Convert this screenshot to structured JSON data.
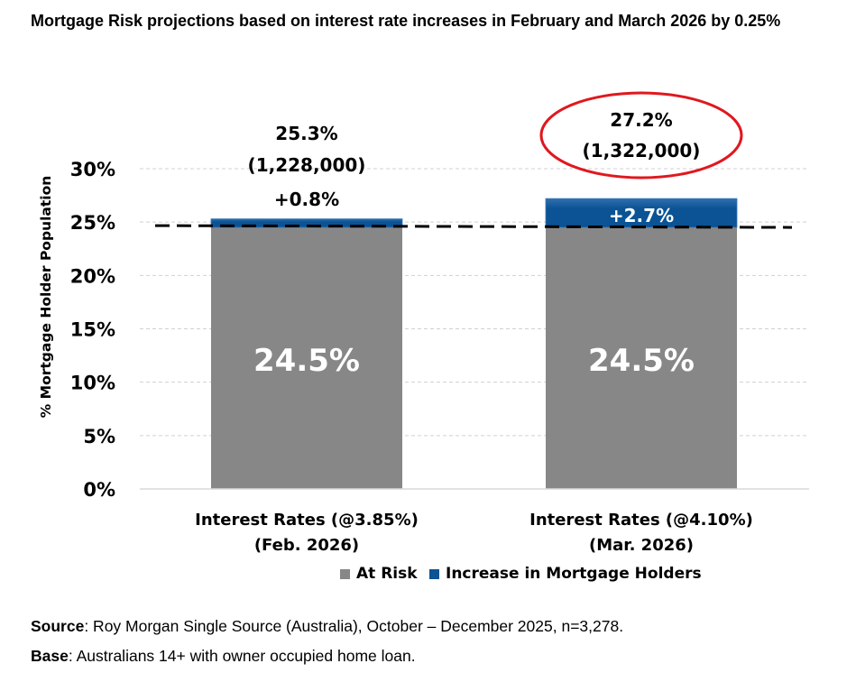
{
  "title": "Mortgage Risk projections based on interest rate increases in February and March 2026 by 0.25%",
  "footer": {
    "source_label": "Source",
    "source_text": ": Roy Morgan Single Source (Australia), October – December 2025, n=3,278.",
    "base_label": "Base",
    "base_text": ": Australians 14+ with owner occupied home loan."
  },
  "colors": {
    "at_risk": "#878787",
    "increase": "#0B5394",
    "increase_highlight": "#2F6FB0",
    "dashed_line": "#000000",
    "highlight_ellipse": "#E0181E",
    "gridline": "#d0d0d0"
  },
  "chart_data": {
    "type": "bar",
    "stacked": true,
    "title": "Mortgage Risk projections based on interest rate increases in February and March 2026 by 0.25%",
    "xlabel": "",
    "ylabel": "% Mortgage Holder Population",
    "ylim": [
      0,
      30
    ],
    "yticks": [
      0,
      5,
      10,
      15,
      20,
      25,
      30
    ],
    "ytick_labels": [
      "0%",
      "5%",
      "10%",
      "15%",
      "20%",
      "25%",
      "30%"
    ],
    "grid": true,
    "legend_position": "bottom",
    "categories": [
      {
        "line1": "Interest Rates (@3.85%)",
        "line2": "(Feb. 2026)"
      },
      {
        "line1": "Interest Rates (@4.10%)",
        "line2": "(Mar. 2026)"
      }
    ],
    "series": [
      {
        "name": "At Risk",
        "values": [
          24.5,
          24.5
        ],
        "labels": [
          "24.5%",
          "24.5%"
        ]
      },
      {
        "name": "Increase in Mortgage Holders",
        "values": [
          0.8,
          2.7
        ],
        "labels": [
          "+0.8%",
          "+2.7%"
        ]
      }
    ],
    "totals": [
      {
        "value": 25.3,
        "label": "25.3%",
        "count": "(1,228,000)"
      },
      {
        "value": 27.2,
        "label": "27.2%",
        "count": "(1,322,000)",
        "highlighted": true
      }
    ],
    "reference_line": {
      "value": 24.5,
      "style": "dashed"
    }
  }
}
